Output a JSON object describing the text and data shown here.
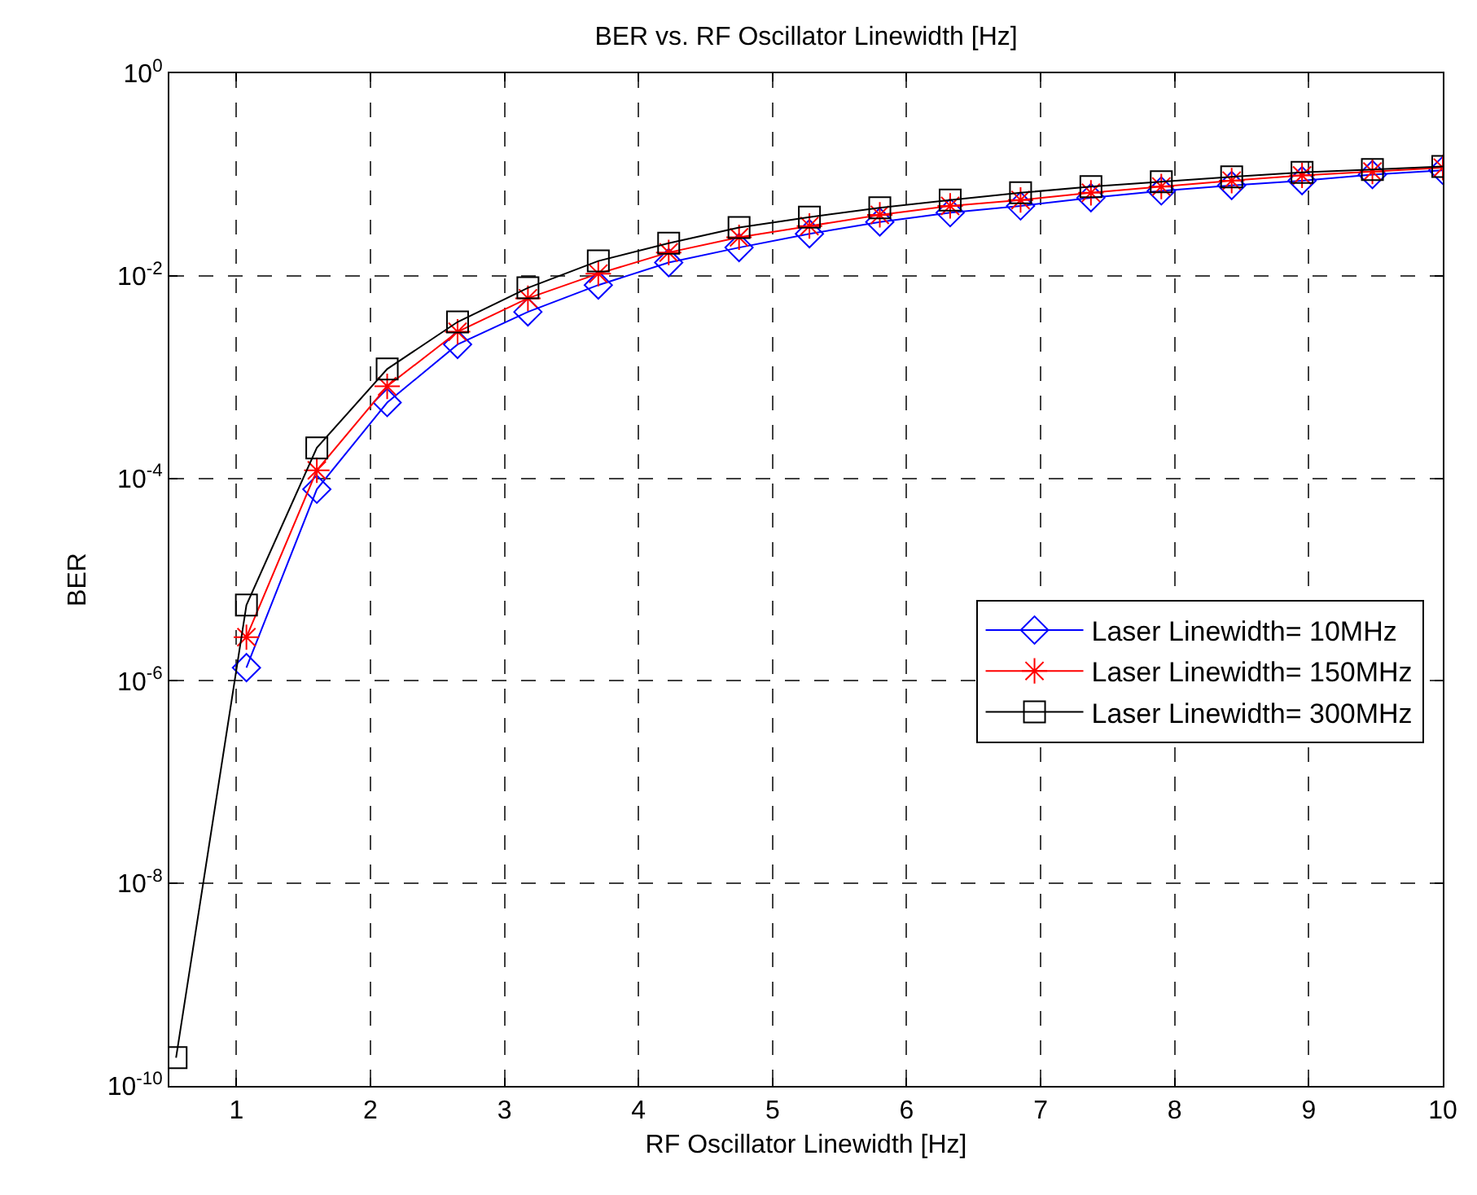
{
  "chart_data": {
    "type": "line",
    "title": "BER vs. RF Oscillator Linewidth [Hz]",
    "xlabel": "RF Oscillator Linewidth [Hz]",
    "ylabel": "BER",
    "x": [
      0.55,
      1.075,
      1.6,
      2.125,
      2.65,
      3.175,
      3.7,
      4.225,
      4.75,
      5.275,
      5.8,
      6.325,
      6.85,
      7.375,
      7.9,
      8.425,
      8.95,
      9.475,
      10
    ],
    "series": [
      {
        "name": "Laser Linewidth= 10MHz",
        "color": "#0000ff",
        "marker": "diamond",
        "values": [
          null,
          1.35e-06,
          7.8e-05,
          0.00056,
          0.0021,
          0.0044,
          0.0081,
          0.0135,
          0.019,
          0.026,
          0.034,
          0.042,
          0.049,
          0.059,
          0.069,
          0.078,
          0.087,
          0.1,
          0.11
        ]
      },
      {
        "name": "Laser Linewidth= 150MHz",
        "color": "#ff0000",
        "marker": "cross",
        "values": [
          null,
          2.7e-06,
          0.00012,
          0.00081,
          0.0028,
          0.006,
          0.0105,
          0.017,
          0.024,
          0.031,
          0.04,
          0.049,
          0.056,
          0.066,
          0.076,
          0.087,
          0.098,
          0.107,
          0.117
        ]
      },
      {
        "name": "Laser Linewidth= 300MHz",
        "color": "#000000",
        "marker": "square",
        "values": [
          1.9e-10,
          5.6e-06,
          0.0002,
          0.0012,
          0.0035,
          0.0076,
          0.014,
          0.021,
          0.03,
          0.038,
          0.047,
          0.056,
          0.066,
          0.076,
          0.085,
          0.095,
          0.105,
          0.112,
          0.12
        ]
      }
    ],
    "log": "y",
    "xlim": [
      0.5,
      10
    ],
    "xticks": [
      1,
      2,
      3,
      4,
      5,
      6,
      7,
      8,
      9,
      10
    ],
    "ylim": [
      1e-10,
      1
    ],
    "yticks": [
      {
        "value": 1e-10,
        "label": "10$^{-10}$"
      },
      {
        "value": 1e-08,
        "label": "10$^{-8}$"
      },
      {
        "value": 1e-06,
        "label": "10$^{-6}$"
      },
      {
        "value": 0.0001,
        "label": "10$^{-4}$"
      },
      {
        "value": 0.01,
        "label": "10$^{-2}$"
      },
      {
        "value": 1,
        "label": "10$^{0}$"
      }
    ],
    "grid": true,
    "legend": "right",
    "line_style": "solid"
  }
}
